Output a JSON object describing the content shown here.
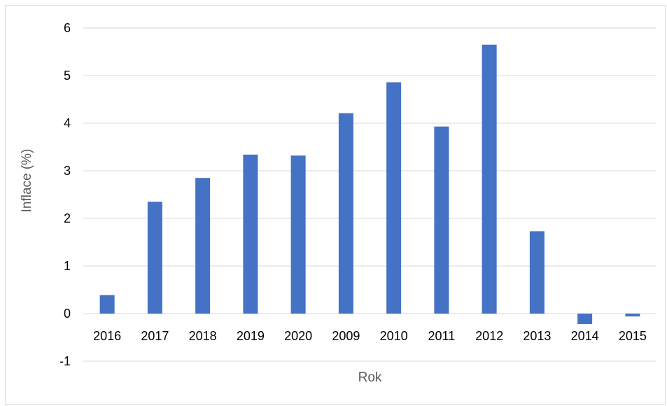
{
  "chart_data": {
    "type": "bar",
    "title": "",
    "xlabel": "Rok",
    "ylabel": "Inflace (%)",
    "categories": [
      "2016",
      "2017",
      "2018",
      "2019",
      "2020",
      "2009",
      "2010",
      "2011",
      "2012",
      "2013",
      "2014",
      "2015"
    ],
    "values": [
      0.39,
      2.35,
      2.85,
      3.34,
      3.32,
      4.21,
      4.86,
      3.93,
      5.65,
      1.73,
      -0.22,
      -0.06
    ],
    "ylim": [
      -1,
      6
    ],
    "yticks": [
      -1,
      0,
      1,
      2,
      3,
      4,
      5,
      6
    ],
    "grid": true,
    "legend": "none",
    "colors": {
      "bar": "#4472c4",
      "grid": "#d9d9d9",
      "axis_title": "#595959"
    }
  }
}
